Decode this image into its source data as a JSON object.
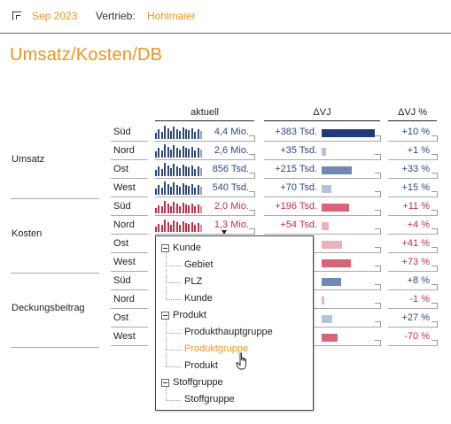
{
  "header": {
    "period": "Sep 2023",
    "vertrieb_label": "Vertrieb:",
    "vertrieb_name": "Hohlmaier"
  },
  "title": "Umsatz/Kosten/DB",
  "columns": {
    "aktuell": "aktuell",
    "dvj": "ΔVJ",
    "dvj_pct": "ΔVJ %"
  },
  "colors": {
    "accent": "#f0941f",
    "umsatz_spark": "#2f4a7a",
    "kosten_spark": "#c0304a",
    "pos_bar": "#6f89b5",
    "pos_bar_strong": "#1f3a78",
    "pos_bar_light": "#b5c2d9",
    "neg_bar": "#d96378",
    "neg_bar_light": "#ecb1bc"
  },
  "groups": [
    {
      "label": "Umsatz",
      "rows": [
        {
          "region": "Süd",
          "value": "4,4 Mio.",
          "delta": "+383 Tsd.",
          "pct": "+10 %",
          "bar": 1.0,
          "bar_color": "pos_bar_strong",
          "tone": "blue"
        },
        {
          "region": "Nord",
          "value": "2,6 Mio.",
          "delta": "+35 Tsd.",
          "pct": "+1 %",
          "bar": 0.09,
          "bar_color": "pos_bar_light",
          "tone": "blue"
        },
        {
          "region": "Ost",
          "value": "856 Tsd.",
          "delta": "+215 Tsd.",
          "pct": "+33 %",
          "bar": 0.56,
          "bar_color": "pos_bar",
          "tone": "blue"
        },
        {
          "region": "West",
          "value": "540 Tsd.",
          "delta": "+70 Tsd.",
          "pct": "+15 %",
          "bar": 0.18,
          "bar_color": "pos_bar_light",
          "tone": "blue"
        }
      ]
    },
    {
      "label": "Kosten",
      "rows": [
        {
          "region": "Süd",
          "value": "2,0 Mio.",
          "delta": "+196 Tsd.",
          "pct": "+11 %",
          "bar": 0.51,
          "bar_color": "neg_bar",
          "tone": "red"
        },
        {
          "region": "Nord",
          "value": "1,3 Mio.",
          "delta": "+54 Tsd.",
          "pct": "+4 %",
          "bar": 0.14,
          "bar_color": "neg_bar_light",
          "tone": "red"
        },
        {
          "region": "Ost",
          "value": "",
          "delta": "",
          "pct": "+41 %",
          "bar": 0.38,
          "bar_color": "neg_bar_light",
          "tone": "red"
        },
        {
          "region": "West",
          "value": "",
          "delta": "",
          "pct": "+73 %",
          "bar": 0.55,
          "bar_color": "neg_bar",
          "tone": "red"
        }
      ]
    },
    {
      "label": "Deckungsbeitrag",
      "rows": [
        {
          "region": "Süd",
          "value": "",
          "delta": "",
          "pct": "+8 %",
          "bar": 0.36,
          "bar_color": "pos_bar",
          "tone": "blue"
        },
        {
          "region": "Nord",
          "value": "",
          "delta": "",
          "pct": "-1 %",
          "bar": 0.03,
          "bar_color": "neg_bar_light",
          "tone": "red"
        },
        {
          "region": "Ost",
          "value": "",
          "delta": "",
          "pct": "+27 %",
          "bar": 0.2,
          "bar_color": "pos_bar_light",
          "tone": "blue"
        },
        {
          "region": "West",
          "value": "",
          "delta": "",
          "pct": "-70 %",
          "bar": 0.3,
          "bar_color": "neg_bar",
          "tone": "red"
        }
      ]
    }
  ],
  "popup": {
    "nodes": [
      {
        "label": "Kunde",
        "level": 0,
        "expanded": true
      },
      {
        "label": "Gebiet",
        "level": 1
      },
      {
        "label": "PLZ",
        "level": 1
      },
      {
        "label": "Kunde",
        "level": 1
      },
      {
        "label": "Produkt",
        "level": 0,
        "expanded": true
      },
      {
        "label": "Produkthauptgruppe",
        "level": 1
      },
      {
        "label": "Produktgruppe",
        "level": 1,
        "hovered": true
      },
      {
        "label": "Produkt",
        "level": 1
      },
      {
        "label": "Stoffgruppe",
        "level": 0,
        "expanded": true
      },
      {
        "label": "Stoffgruppe",
        "level": 1
      }
    ]
  }
}
